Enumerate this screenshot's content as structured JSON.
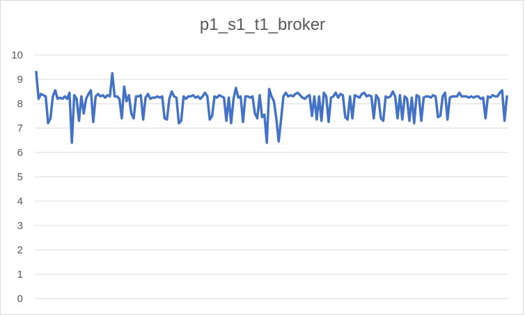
{
  "chart_data": {
    "type": "line",
    "title": "p1_s1_t1_broker",
    "xlabel": "",
    "ylabel": "",
    "ylim": [
      0,
      10
    ],
    "yticks": [
      0,
      1,
      2,
      3,
      4,
      5,
      6,
      7,
      8,
      9,
      10
    ],
    "grid": true,
    "legend": "none",
    "x_axis_labels_shown": false,
    "color": "#4472c4",
    "series": [
      {
        "values": [
          9.3,
          8.2,
          8.4,
          8.35,
          8.3,
          7.2,
          7.4,
          8.3,
          8.55,
          8.2,
          8.25,
          8.2,
          8.3,
          8.2,
          8.45,
          6.4,
          8.35,
          8.2,
          7.3,
          8.3,
          7.6,
          8.2,
          8.4,
          8.55,
          7.25,
          8.3,
          8.4,
          8.3,
          8.35,
          8.25,
          8.35,
          8.3,
          9.25,
          8.3,
          8.3,
          8.2,
          7.4,
          8.7,
          8.1,
          8.35,
          7.6,
          7.4,
          8.3,
          8.3,
          8.35,
          7.35,
          8.25,
          8.4,
          8.2,
          8.25,
          8.25,
          8.3,
          8.25,
          8.3,
          7.4,
          7.35,
          8.2,
          8.5,
          8.3,
          8.25,
          7.2,
          7.3,
          8.3,
          8.2,
          8.3,
          8.3,
          8.35,
          8.25,
          8.3,
          8.2,
          8.3,
          8.45,
          8.3,
          7.35,
          7.5,
          8.3,
          8.25,
          8.35,
          8.3,
          8.25,
          7.3,
          8.25,
          7.2,
          8.2,
          8.65,
          8.25,
          8.3,
          7.25,
          8.3,
          8.3,
          8.25,
          8.3,
          7.6,
          7.4,
          8.35,
          7.45,
          7.55,
          6.4,
          8.6,
          8.3,
          8.1,
          7.4,
          6.45,
          7.35,
          8.3,
          8.45,
          8.3,
          8.35,
          8.3,
          8.4,
          8.45,
          8.35,
          8.25,
          8.2,
          8.3,
          8.35,
          7.5,
          8.3,
          7.35,
          8.3,
          7.3,
          8.45,
          8.3,
          7.25,
          8.25,
          8.3,
          8.45,
          8.25,
          8.4,
          8.35,
          7.45,
          7.35,
          8.3,
          7.4,
          8.35,
          8.3,
          8.25,
          8.4,
          8.45,
          8.3,
          8.35,
          8.3,
          7.4,
          8.35,
          8.2,
          7.4,
          7.3,
          8.3,
          8.25,
          8.3,
          8.5,
          8.3,
          7.4,
          8.35,
          7.35,
          8.3,
          8.2,
          7.3,
          8.25,
          7.2,
          8.35,
          8.3,
          7.3,
          8.25,
          8.3,
          8.3,
          8.25,
          8.35,
          8.3,
          7.45,
          7.5,
          8.3,
          8.45,
          7.35,
          8.25,
          8.3,
          8.3,
          8.3,
          8.45,
          8.3,
          8.3,
          8.3,
          8.25,
          8.3,
          8.25,
          8.3,
          8.3,
          8.2,
          8.25,
          7.4,
          8.3,
          8.25,
          8.35,
          8.3,
          8.3,
          8.45,
          8.55,
          7.3,
          8.3
        ]
      }
    ]
  }
}
